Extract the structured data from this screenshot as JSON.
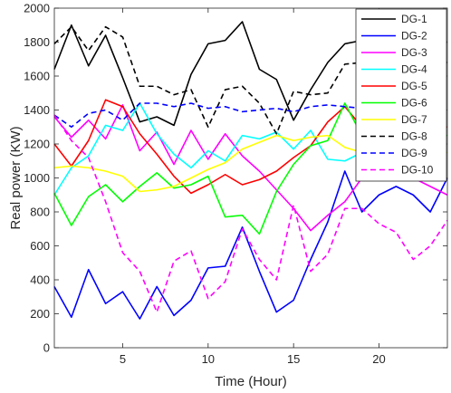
{
  "chart_data": {
    "type": "line",
    "title": "",
    "xlabel": "Time (Hour)",
    "ylabel": "Real power (KW)",
    "xlim": [
      1,
      24
    ],
    "ylim": [
      0,
      2000
    ],
    "x_ticks": [
      "5",
      "10",
      "15",
      "20"
    ],
    "y_ticks": [
      "0",
      "200",
      "400",
      "600",
      "800",
      "1000",
      "1200",
      "1400",
      "1600",
      "1800",
      "2000"
    ],
    "x": [
      1,
      2,
      3,
      4,
      5,
      6,
      7,
      8,
      9,
      10,
      11,
      12,
      13,
      14,
      15,
      16,
      17,
      18,
      19,
      20,
      21,
      22,
      23,
      24
    ],
    "legend_position": "top-right",
    "grid": false,
    "series": [
      {
        "name": "DG-1",
        "color": "#000000",
        "dash": "solid",
        "values": [
          1640,
          1900,
          1660,
          1840,
          1590,
          1330,
          1360,
          1310,
          1610,
          1790,
          1810,
          1920,
          1640,
          1580,
          1340,
          1520,
          1680,
          1790,
          1810,
          1800,
          1800,
          1800,
          1800,
          1800
        ]
      },
      {
        "name": "DG-2",
        "color": "#0000ff",
        "dash": "solid",
        "values": [
          360,
          180,
          460,
          260,
          330,
          170,
          360,
          190,
          280,
          470,
          480,
          710,
          450,
          210,
          280,
          520,
          740,
          1040,
          800,
          900,
          950,
          900,
          800,
          1000
        ]
      },
      {
        "name": "DG-3",
        "color": "#ff00ff",
        "dash": "solid",
        "values": [
          1360,
          1240,
          1340,
          1230,
          1430,
          1160,
          1270,
          1080,
          1280,
          1110,
          1260,
          1130,
          1040,
          930,
          820,
          690,
          780,
          860,
          1000,
          1050,
          1050,
          1000,
          950,
          900
        ]
      },
      {
        "name": "DG-4",
        "color": "#00ffff",
        "dash": "solid",
        "values": [
          900,
          1060,
          1130,
          1310,
          1280,
          1440,
          1260,
          1140,
          1060,
          1160,
          1100,
          1250,
          1230,
          1270,
          1170,
          1280,
          1110,
          1100,
          1150,
          1150,
          1150,
          1150,
          1150,
          1150
        ]
      },
      {
        "name": "DG-5",
        "color": "#ff0000",
        "dash": "solid",
        "values": [
          1200,
          1070,
          1220,
          1460,
          1420,
          1260,
          1140,
          1010,
          910,
          960,
          1020,
          960,
          990,
          1040,
          1120,
          1190,
          1330,
          1420,
          1300,
          1300,
          1300,
          1300,
          1300,
          1300
        ]
      },
      {
        "name": "DG-6",
        "color": "#00ff00",
        "dash": "solid",
        "values": [
          910,
          720,
          890,
          960,
          860,
          950,
          1030,
          940,
          960,
          1010,
          770,
          780,
          670,
          920,
          1080,
          1190,
          1220,
          1440,
          1250,
          1250,
          1250,
          1250,
          1250,
          1250
        ]
      },
      {
        "name": "DG-7",
        "color": "#ffff00",
        "dash": "solid",
        "values": [
          1060,
          1070,
          1060,
          1040,
          1010,
          920,
          930,
          950,
          1000,
          1050,
          1090,
          1170,
          1210,
          1250,
          1220,
          1240,
          1250,
          1180,
          1150,
          1150,
          1150,
          1150,
          1150,
          1150
        ]
      },
      {
        "name": "DG-8",
        "color": "#000000",
        "dash": "dashed",
        "values": [
          1790,
          1890,
          1750,
          1890,
          1830,
          1540,
          1540,
          1490,
          1520,
          1300,
          1520,
          1540,
          1440,
          1260,
          1510,
          1490,
          1500,
          1670,
          1680,
          1680,
          1680,
          1680,
          1680,
          1680
        ]
      },
      {
        "name": "DG-9",
        "color": "#0000ff",
        "dash": "dashed",
        "values": [
          1370,
          1300,
          1380,
          1400,
          1340,
          1440,
          1440,
          1420,
          1440,
          1410,
          1420,
          1390,
          1400,
          1410,
          1390,
          1420,
          1430,
          1420,
          1410,
          1410,
          1410,
          1410,
          1410,
          1410
        ]
      },
      {
        "name": "DG-10",
        "color": "#ff00ff",
        "dash": "dashed",
        "values": [
          1370,
          1220,
          1120,
          860,
          560,
          450,
          210,
          510,
          570,
          290,
          390,
          700,
          520,
          400,
          840,
          450,
          550,
          820,
          820,
          730,
          680,
          520,
          600,
          750
        ]
      }
    ]
  }
}
